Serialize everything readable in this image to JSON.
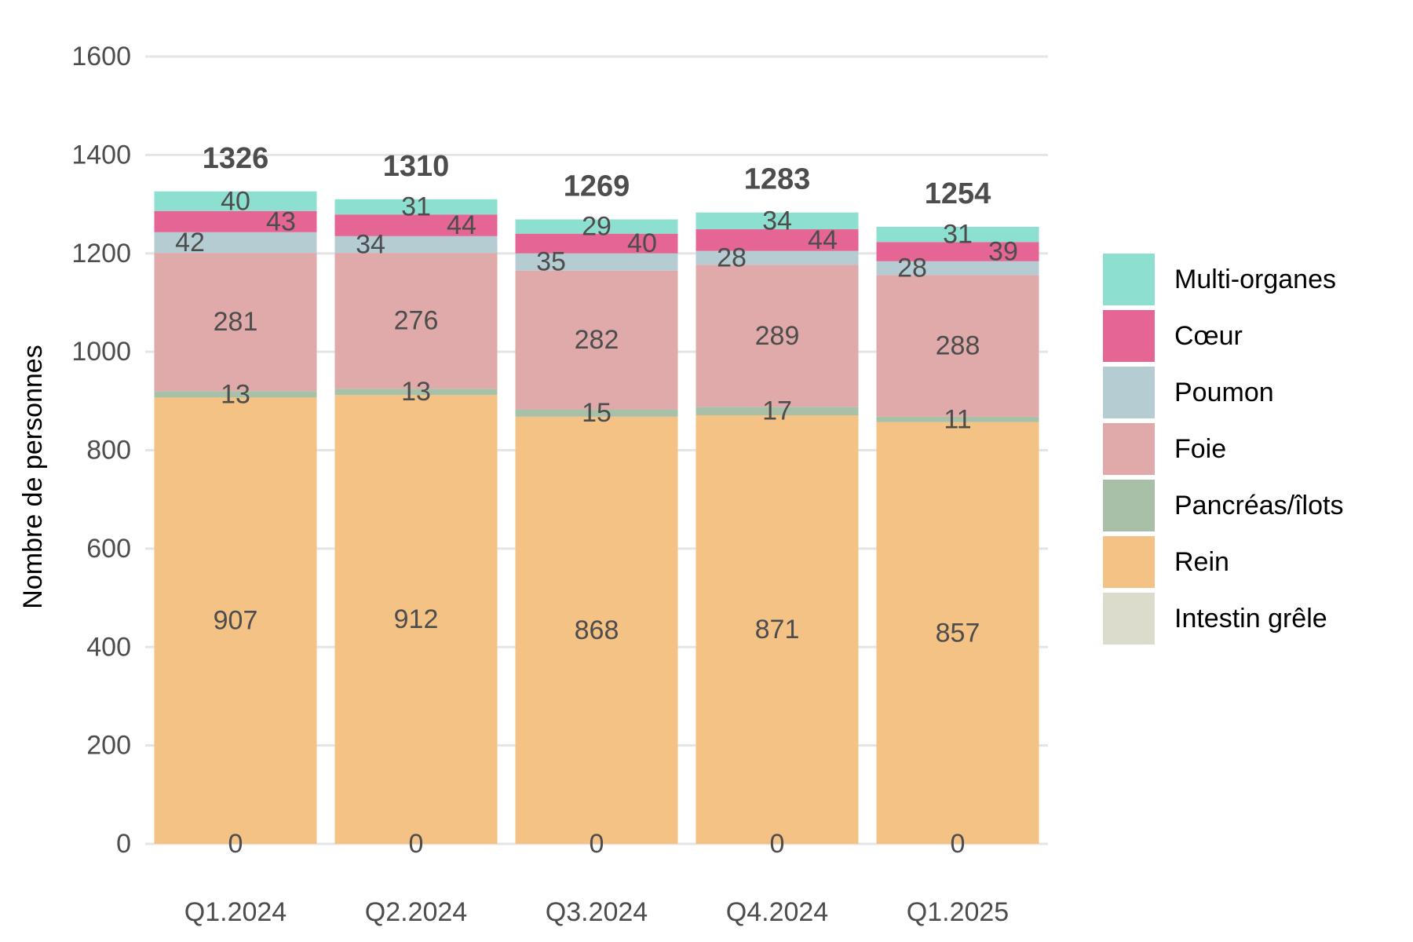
{
  "chart_data": {
    "type": "bar",
    "stacked": true,
    "categories": [
      "Q1.2024",
      "Q2.2024",
      "Q3.2024",
      "Q4.2024",
      "Q1.2025"
    ],
    "ylabel": "Nombre de personnes",
    "xlabel": "",
    "ylim": [
      0,
      1600
    ],
    "yticks": [
      "0",
      "200",
      "400",
      "600",
      "800",
      "1000",
      "1200",
      "1400",
      "1600"
    ],
    "grid": true,
    "legend_position": "right",
    "series": [
      {
        "name": "Intestin grêle",
        "color": "#dcdccd",
        "values": [
          0,
          0,
          0,
          0,
          0
        ]
      },
      {
        "name": "Rein",
        "color": "#f5c285",
        "values": [
          907,
          912,
          868,
          871,
          857
        ]
      },
      {
        "name": "Pancréas/îlots",
        "color": "#a8c0a8",
        "values": [
          13,
          13,
          15,
          17,
          11
        ]
      },
      {
        "name": "Foie",
        "color": "#e0aaaa",
        "values": [
          281,
          276,
          282,
          289,
          288
        ]
      },
      {
        "name": "Poumon",
        "color": "#b5ccd2",
        "values": [
          42,
          34,
          35,
          28,
          28
        ]
      },
      {
        "name": "Cœur",
        "color": "#e56595",
        "values": [
          43,
          44,
          40,
          44,
          39
        ]
      },
      {
        "name": "Multi-organes",
        "color": "#8ddfd0",
        "values": [
          40,
          31,
          29,
          34,
          31
        ]
      }
    ],
    "totals": [
      1326,
      1310,
      1269,
      1283,
      1254
    ],
    "legend_order": [
      "Multi-organes",
      "Cœur",
      "Poumon",
      "Foie",
      "Pancréas/îlots",
      "Rein",
      "Intestin grêle"
    ]
  }
}
